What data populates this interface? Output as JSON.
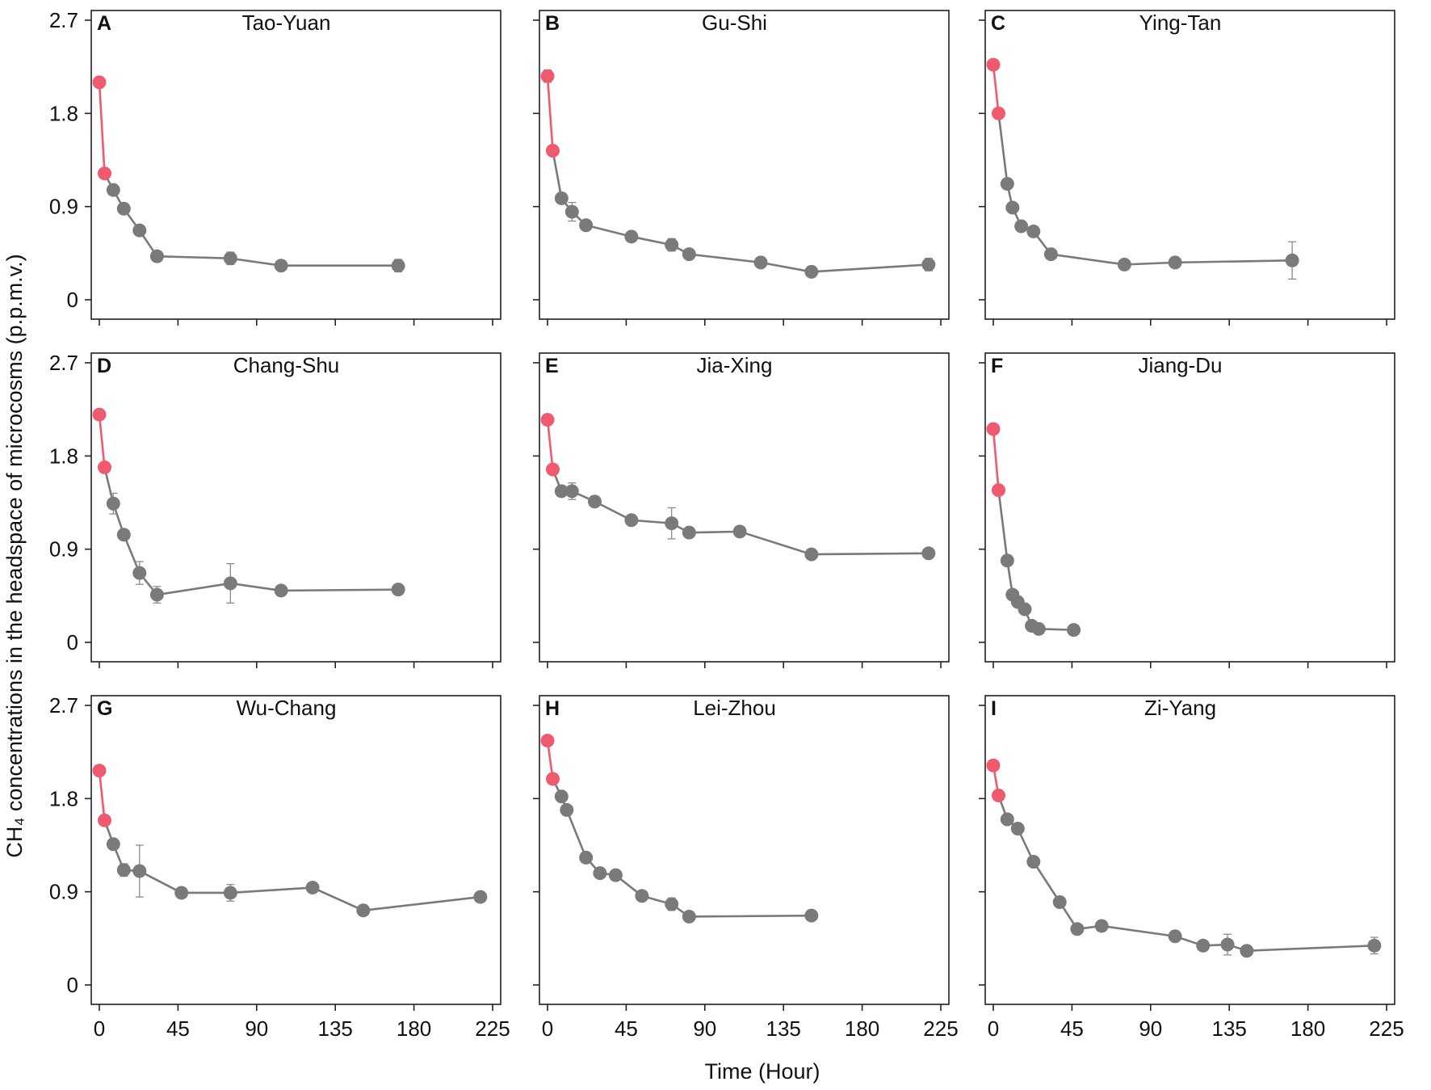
{
  "figure": {
    "xlabel": "Time (Hour)",
    "ylabel": "CH₄ concentrations in the headspace of microcosms (p.p.m.v.)",
    "yticks": [
      "2.7",
      "1.8",
      "0.9",
      "0"
    ],
    "xticks": [
      "0",
      "45",
      "90",
      "135",
      "180",
      "225"
    ],
    "colors": {
      "early": "#f05a6e",
      "late": "#7a7a7a",
      "axis": "#222222",
      "errorbar": "#8a8a8a"
    }
  },
  "chart_data": [
    {
      "type": "line",
      "letter": "A",
      "title": "Tao-Yuan",
      "xlim": [
        0,
        225
      ],
      "ylim": [
        0,
        2.7
      ],
      "early_count": 2,
      "x": [
        0,
        3,
        8,
        14,
        23,
        33,
        75,
        104,
        171
      ],
      "y": [
        2.1,
        1.22,
        1.06,
        0.88,
        0.67,
        0.42,
        0.4,
        0.33,
        0.33
      ],
      "err": [
        0.02,
        0.02,
        0.05,
        0.05,
        0.03,
        0.02,
        0.06,
        0.02,
        0.06
      ]
    },
    {
      "type": "line",
      "letter": "B",
      "title": "Gu-Shi",
      "xlim": [
        0,
        225
      ],
      "ylim": [
        0,
        2.7
      ],
      "early_count": 2,
      "x": [
        0,
        3,
        8,
        14,
        22,
        48,
        71,
        81,
        122,
        151,
        218
      ],
      "y": [
        2.16,
        1.44,
        0.98,
        0.85,
        0.72,
        0.61,
        0.53,
        0.44,
        0.36,
        0.27,
        0.34
      ],
      "err": [
        0.06,
        0.02,
        0.03,
        0.09,
        0.03,
        0.03,
        0.06,
        0.03,
        0.03,
        0.02,
        0.06
      ]
    },
    {
      "type": "line",
      "letter": "C",
      "title": "Ying-Tan",
      "xlim": [
        0,
        225
      ],
      "ylim": [
        0,
        2.7
      ],
      "early_count": 2,
      "x": [
        0,
        3,
        8,
        11,
        16,
        23,
        33,
        75,
        104,
        171
      ],
      "y": [
        2.27,
        1.8,
        1.12,
        0.89,
        0.71,
        0.66,
        0.44,
        0.34,
        0.36,
        0.38
      ],
      "err": [
        0.02,
        0.02,
        0.03,
        0.03,
        0.03,
        0.03,
        0.03,
        0.03,
        0.03,
        0.18
      ]
    },
    {
      "type": "line",
      "letter": "D",
      "title": "Chang-Shu",
      "xlim": [
        0,
        225
      ],
      "ylim": [
        0,
        2.7
      ],
      "early_count": 2,
      "x": [
        0,
        3,
        8,
        14,
        23,
        33,
        75,
        104,
        171
      ],
      "y": [
        2.2,
        1.69,
        1.34,
        1.04,
        0.67,
        0.46,
        0.57,
        0.5,
        0.51
      ],
      "err": [
        0.02,
        0.02,
        0.1,
        0.02,
        0.11,
        0.08,
        0.19,
        0.02,
        0.02
      ]
    },
    {
      "type": "line",
      "letter": "E",
      "title": "Jia-Xing",
      "xlim": [
        0,
        225
      ],
      "ylim": [
        0,
        2.7
      ],
      "early_count": 2,
      "x": [
        0,
        3,
        8,
        14,
        27,
        48,
        71,
        81,
        110,
        151,
        218
      ],
      "y": [
        2.15,
        1.67,
        1.46,
        1.46,
        1.36,
        1.18,
        1.15,
        1.06,
        1.07,
        0.85,
        0.86
      ],
      "err": [
        0.02,
        0.02,
        0.05,
        0.08,
        0.03,
        0.02,
        0.15,
        0.02,
        0.02,
        0.02,
        0.02
      ]
    },
    {
      "type": "line",
      "letter": "F",
      "title": "Jiang-Du",
      "xlim": [
        0,
        225
      ],
      "ylim": [
        0,
        2.7
      ],
      "early_count": 2,
      "x": [
        0,
        3,
        8,
        11,
        14,
        18,
        22,
        26,
        46
      ],
      "y": [
        2.06,
        1.47,
        0.79,
        0.46,
        0.39,
        0.32,
        0.16,
        0.13,
        0.12
      ],
      "err": [
        0.02,
        0.02,
        0.02,
        0.02,
        0.02,
        0.02,
        0.02,
        0.02,
        0.02
      ]
    },
    {
      "type": "line",
      "letter": "G",
      "title": "Wu-Chang",
      "xlim": [
        0,
        225
      ],
      "ylim": [
        0,
        2.7
      ],
      "early_count": 2,
      "x": [
        0,
        3,
        8,
        14,
        23,
        47,
        75,
        122,
        151,
        218
      ],
      "y": [
        2.07,
        1.59,
        1.36,
        1.11,
        1.1,
        0.89,
        0.89,
        0.94,
        0.72,
        0.85
      ],
      "err": [
        0.02,
        0.02,
        0.02,
        0.06,
        0.25,
        0.02,
        0.08,
        0.02,
        0.02,
        0.02
      ]
    },
    {
      "type": "line",
      "letter": "H",
      "title": "Lei-Zhou",
      "xlim": [
        0,
        225
      ],
      "ylim": [
        0,
        2.7
      ],
      "early_count": 2,
      "x": [
        0,
        3,
        8,
        11,
        22,
        30,
        39,
        54,
        71,
        81,
        151
      ],
      "y": [
        2.36,
        1.99,
        1.82,
        1.69,
        1.23,
        1.08,
        1.06,
        0.86,
        0.78,
        0.66,
        0.67
      ],
      "err": [
        0.02,
        0.02,
        0.02,
        0.02,
        0.02,
        0.02,
        0.02,
        0.02,
        0.06,
        0.05,
        0.02
      ]
    },
    {
      "type": "line",
      "letter": "I",
      "title": "Zi-Yang",
      "xlim": [
        0,
        225
      ],
      "ylim": [
        0,
        2.7
      ],
      "early_count": 2,
      "x": [
        0,
        3,
        8,
        14,
        23,
        38,
        48,
        62,
        104,
        120,
        134,
        145,
        218
      ],
      "y": [
        2.12,
        1.83,
        1.6,
        1.51,
        1.19,
        0.8,
        0.54,
        0.57,
        0.47,
        0.38,
        0.39,
        0.33,
        0.38
      ],
      "err": [
        0.02,
        0.02,
        0.02,
        0.02,
        0.02,
        0.02,
        0.02,
        0.05,
        0.02,
        0.02,
        0.1,
        0.02,
        0.08
      ]
    }
  ]
}
